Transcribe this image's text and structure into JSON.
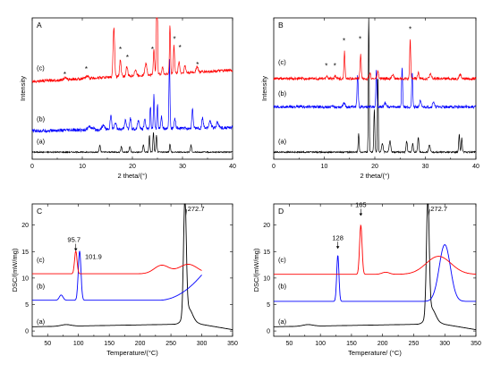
{
  "figure": "Four-panel figure: PXRD patterns (A, B) and DSC thermograms (C, D)",
  "colors": {
    "a": "#000000",
    "b": "#0000ff",
    "c": "#ff0000",
    "star": "#444444"
  },
  "chart_data": [
    {
      "id": "A",
      "type": "line",
      "panel_label": "A",
      "xlabel": "2 theta/(°)",
      "ylabel": "Intensity",
      "xlim": [
        0,
        40
      ],
      "xticks": [
        0,
        10,
        20,
        30,
        40
      ],
      "series_labels": [
        "(a)",
        "(b)",
        "(c)"
      ],
      "series": [
        {
          "label": "(a)",
          "color": "#000000",
          "baseline": 0.05,
          "noise": 0.004,
          "slope": 0,
          "peaks": [
            [
              13.5,
              0.05,
              0.12
            ],
            [
              17.8,
              0.04,
              0.12
            ],
            [
              19.5,
              0.04,
              0.12
            ],
            [
              22.2,
              0.05,
              0.12
            ],
            [
              23.4,
              0.12,
              0.1
            ],
            [
              24.2,
              0.14,
              0.1
            ],
            [
              24.8,
              0.12,
              0.1
            ],
            [
              27.5,
              0.06,
              0.1
            ],
            [
              31.7,
              0.05,
              0.12
            ]
          ]
        },
        {
          "label": "(b)",
          "color": "#0000ff",
          "baseline": 0.2,
          "noise": 0.012,
          "slope": 0.0006,
          "peaks": [
            [
              11.5,
              0.02,
              0.5
            ],
            [
              14.2,
              0.03,
              0.3
            ],
            [
              15.7,
              0.1,
              0.15
            ],
            [
              16.6,
              0.05,
              0.2
            ],
            [
              18.6,
              0.06,
              0.2
            ],
            [
              19.6,
              0.08,
              0.15
            ],
            [
              21.2,
              0.06,
              0.2
            ],
            [
              22.5,
              0.07,
              0.15
            ],
            [
              23.6,
              0.16,
              0.1
            ],
            [
              24.3,
              0.24,
              0.1
            ],
            [
              25.0,
              0.17,
              0.1
            ],
            [
              25.8,
              0.09,
              0.12
            ],
            [
              27.4,
              0.5,
              0.1
            ],
            [
              28.5,
              0.07,
              0.15
            ],
            [
              32.0,
              0.14,
              0.12
            ],
            [
              34.0,
              0.07,
              0.15
            ],
            [
              35.5,
              0.05,
              0.2
            ],
            [
              37.0,
              0.04,
              0.2
            ]
          ]
        },
        {
          "label": "(c)",
          "color": "#ff0000",
          "baseline": 0.55,
          "noise": 0.01,
          "slope": 0.002,
          "peaks": [
            [
              6.5,
              0.015,
              0.2
            ],
            [
              11.0,
              0.02,
              0.2
            ],
            [
              16.3,
              0.35,
              0.15
            ],
            [
              17.6,
              0.12,
              0.15
            ],
            [
              18.9,
              0.07,
              0.15
            ],
            [
              20.6,
              0.04,
              0.2
            ],
            [
              22.7,
              0.08,
              0.2
            ],
            [
              24.3,
              0.18,
              0.12
            ],
            [
              24.9,
              0.87,
              0.1
            ],
            [
              26.0,
              0.05,
              0.15
            ],
            [
              27.5,
              0.35,
              0.1
            ],
            [
              28.3,
              0.2,
              0.12
            ],
            [
              29.3,
              0.08,
              0.15
            ],
            [
              30.5,
              0.05,
              0.15
            ],
            [
              32.9,
              0.04,
              0.2
            ]
          ]
        }
      ],
      "annotations": [
        {
          "text": "*",
          "x": 6.5,
          "y": 0.6
        },
        {
          "text": "*",
          "x": 10.8,
          "y": 0.64
        },
        {
          "text": "*",
          "x": 17.6,
          "y": 0.78
        },
        {
          "text": "*",
          "x": 19.0,
          "y": 0.72
        },
        {
          "text": "*",
          "x": 24.0,
          "y": 0.78
        },
        {
          "text": "*",
          "x": 28.4,
          "y": 0.85
        },
        {
          "text": "*",
          "x": 29.5,
          "y": 0.79
        },
        {
          "text": "*",
          "x": 33.0,
          "y": 0.67
        }
      ]
    },
    {
      "id": "B",
      "type": "line",
      "panel_label": "B",
      "xlabel": "2 theta/(°)",
      "ylabel": "Intensity",
      "xlim": [
        0,
        40
      ],
      "xticks": [
        0,
        10,
        20,
        30,
        40
      ],
      "series_labels": [
        "(a)",
        "(b)",
        "(c)"
      ],
      "series": [
        {
          "label": "(a)",
          "color": "#000000",
          "baseline": 0.05,
          "noise": 0.005,
          "slope": 0,
          "peaks": [
            [
              16.8,
              0.13,
              0.1
            ],
            [
              18.8,
              1.05,
              0.08
            ],
            [
              19.9,
              0.3,
              0.1
            ],
            [
              20.6,
              0.55,
              0.08
            ],
            [
              21.5,
              0.06,
              0.15
            ],
            [
              23.0,
              0.08,
              0.15
            ],
            [
              26.3,
              0.08,
              0.12
            ],
            [
              27.5,
              0.06,
              0.12
            ],
            [
              28.6,
              0.1,
              0.12
            ],
            [
              30.8,
              0.05,
              0.15
            ],
            [
              36.7,
              0.13,
              0.1
            ],
            [
              37.2,
              0.1,
              0.1
            ]
          ]
        },
        {
          "label": "(b)",
          "color": "#0000ff",
          "baseline": 0.37,
          "noise": 0.01,
          "slope": 0,
          "peaks": [
            [
              13.9,
              0.03,
              0.2
            ],
            [
              16.6,
              0.22,
              0.12
            ],
            [
              20.3,
              0.26,
              0.1
            ],
            [
              22.0,
              0.03,
              0.2
            ],
            [
              25.4,
              0.28,
              0.1
            ],
            [
              27.4,
              0.25,
              0.1
            ],
            [
              29.0,
              0.04,
              0.15
            ],
            [
              31.6,
              0.04,
              0.15
            ]
          ]
        },
        {
          "label": "(c)",
          "color": "#ff0000",
          "baseline": 0.57,
          "noise": 0.01,
          "slope": 0,
          "peaks": [
            [
              10.5,
              0.02,
              0.15
            ],
            [
              12.2,
              0.02,
              0.15
            ],
            [
              14.0,
              0.2,
              0.1
            ],
            [
              17.2,
              0.17,
              0.12
            ],
            [
              19.0,
              0.04,
              0.15
            ],
            [
              20.6,
              0.05,
              0.15
            ],
            [
              23.5,
              0.03,
              0.2
            ],
            [
              27.0,
              0.28,
              0.1
            ],
            [
              28.6,
              0.04,
              0.15
            ],
            [
              31.0,
              0.03,
              0.2
            ],
            [
              36.9,
              0.03,
              0.2
            ]
          ]
        }
      ],
      "annotations": [
        {
          "text": "*",
          "x": 10.4,
          "y": 0.66
        },
        {
          "text": "*",
          "x": 12.1,
          "y": 0.66
        },
        {
          "text": "*",
          "x": 13.9,
          "y": 0.84
        },
        {
          "text": "*",
          "x": 17.1,
          "y": 0.85
        },
        {
          "text": "*",
          "x": 27.0,
          "y": 0.92
        }
      ]
    },
    {
      "id": "C",
      "type": "line",
      "panel_label": "C",
      "xlabel": "Temperature/(°C)",
      "ylabel": "DSC/(mW/mg)",
      "xlim": [
        25,
        350
      ],
      "ylim": [
        -1,
        24
      ],
      "xticks": [
        50,
        100,
        150,
        200,
        250,
        300,
        350
      ],
      "yticks": [
        0,
        5,
        10,
        15,
        20
      ],
      "series_labels": [
        "(a)",
        "(b)",
        "(c)"
      ],
      "series": [
        {
          "label": "(a)",
          "color": "#000000",
          "range": [
            25,
            350
          ],
          "baseline": 0.8,
          "slope": 0.002,
          "x0": 25,
          "end_drop": [
            295,
            350,
            -1.2
          ],
          "peaks": [
            [
              80,
              0.3,
              8
            ],
            [
              272.7,
              22,
              2.2
            ],
            [
              278,
              3,
              7
            ]
          ]
        },
        {
          "label": "(b)",
          "color": "#0000ff",
          "range": [
            25,
            300
          ],
          "baseline": 5.8,
          "slope": 0,
          "x0": 25,
          "rise": [
            230,
            300,
            4.8
          ],
          "peaks": [
            [
              72,
              1.0,
              3
            ],
            [
              101.9,
              9.3,
              2.2
            ]
          ]
        },
        {
          "label": "(c)",
          "color": "#ff0000",
          "range": [
            25,
            300
          ],
          "baseline": 10.8,
          "slope": 0,
          "x0": 25,
          "peaks": [
            [
              95.7,
              4.3,
              2.0
            ],
            [
              235,
              1.6,
              12
            ],
            [
              278,
              1.8,
              15
            ]
          ]
        }
      ],
      "peak_labels": [
        {
          "text": "95.7",
          "x": 95.7,
          "y": 15.2
        },
        {
          "text": "101.9",
          "x": 101.9,
          "y": 15.2
        },
        {
          "text": "272.7",
          "x": 272.7,
          "y": 22.8
        }
      ]
    },
    {
      "id": "D",
      "type": "line",
      "panel_label": "D",
      "xlabel": "Temperature/ (°C)",
      "ylabel": "DSC/(mW/mg)",
      "xlim": [
        25,
        350
      ],
      "ylim": [
        -1,
        24
      ],
      "xticks": [
        50,
        100,
        150,
        200,
        250,
        300,
        350
      ],
      "yticks": [
        0,
        5,
        10,
        15,
        20
      ],
      "series_labels": [
        "(a)",
        "(b)",
        "(c)"
      ],
      "series": [
        {
          "label": "(a)",
          "color": "#000000",
          "range": [
            25,
            350
          ],
          "baseline": 0.8,
          "slope": 0.002,
          "x0": 25,
          "end_drop": [
            295,
            350,
            -1.2
          ],
          "peaks": [
            [
              80,
              0.3,
              8
            ],
            [
              272.7,
              22,
              2.2
            ],
            [
              278,
              3,
              7
            ]
          ]
        },
        {
          "label": "(b)",
          "color": "#0000ff",
          "range": [
            25,
            350
          ],
          "baseline": 5.6,
          "slope": 0,
          "x0": 25,
          "peaks": [
            [
              128,
              8.7,
              1.8
            ],
            [
              300,
              10.7,
              9
            ]
          ]
        },
        {
          "label": "(c)",
          "color": "#ff0000",
          "range": [
            25,
            350
          ],
          "baseline": 10.7,
          "slope": 0,
          "x0": 25,
          "peaks": [
            [
              165,
              9.3,
              2.0
            ],
            [
              290,
              3.4,
              20
            ],
            [
              205,
              0.4,
              6
            ]
          ]
        }
      ],
      "peak_labels": [
        {
          "text": "128",
          "x": 128,
          "y": 17.2
        },
        {
          "text": "165",
          "x": 165,
          "y": 23.4
        },
        {
          "text": "272.7",
          "x": 272.7,
          "y": 22.8
        }
      ]
    }
  ]
}
